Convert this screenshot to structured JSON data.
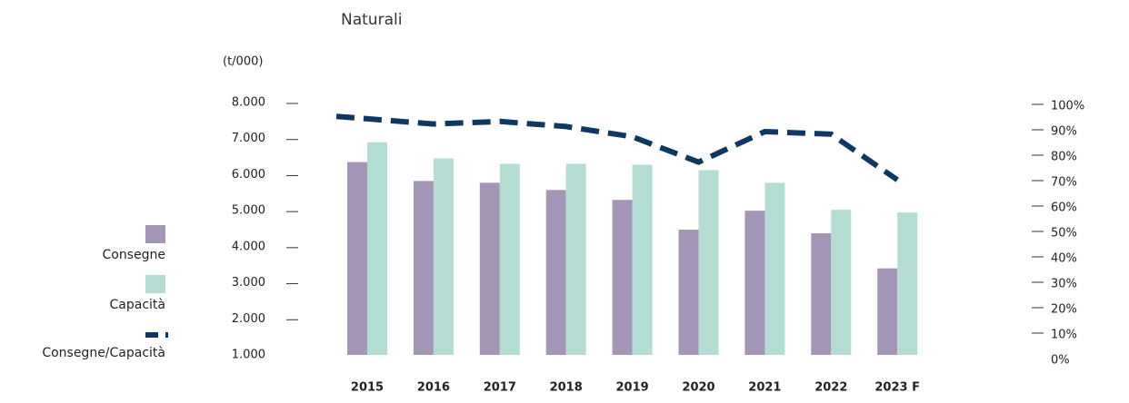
{
  "chart_data": {
    "type": "bar",
    "title": "Naturali",
    "y_label": "(t/000)",
    "categories": [
      "2015",
      "2016",
      "2017",
      "2018",
      "2019",
      "2020",
      "2021",
      "2022",
      "2023 F"
    ],
    "series": [
      {
        "name": "Consegne",
        "color": "#a396b6",
        "values": [
          6350,
          5825,
          5775,
          5575,
          5300,
          4475,
          5000,
          4375,
          3400
        ]
      },
      {
        "name": "Capacità",
        "color": "#b3ddd2",
        "values": [
          6900,
          6450,
          6300,
          6300,
          6275,
          6125,
          5775,
          5025,
          4950
        ]
      },
      {
        "name": "Consegne/Capacità",
        "type": "line",
        "axis": "y2",
        "color": "#0f3860",
        "dashed": true,
        "values": [
          96,
          93,
          94,
          92,
          88,
          78,
          90,
          89,
          71
        ]
      }
    ],
    "ylim": [
      1000,
      8000
    ],
    "yticks": [
      {
        "value": 1000,
        "label": "1.000"
      },
      {
        "value": 2000,
        "label": "2.000"
      },
      {
        "value": 3000,
        "label": "3.000"
      },
      {
        "value": 4000,
        "label": "4.000"
      },
      {
        "value": 5000,
        "label": "5.000"
      },
      {
        "value": 6000,
        "label": "6.000"
      },
      {
        "value": 7000,
        "label": "7.000"
      },
      {
        "value": 8000,
        "label": "8.000"
      }
    ],
    "y2lim": [
      0,
      100
    ],
    "y2ticks": [
      {
        "value": 0,
        "label": "0%"
      },
      {
        "value": 10,
        "label": "10%"
      },
      {
        "value": 20,
        "label": "20%"
      },
      {
        "value": 30,
        "label": "30%"
      },
      {
        "value": 40,
        "label": "40%"
      },
      {
        "value": 50,
        "label": "50%"
      },
      {
        "value": 60,
        "label": "60%"
      },
      {
        "value": 70,
        "label": "70%"
      },
      {
        "value": 80,
        "label": "80%"
      },
      {
        "value": 90,
        "label": "90%"
      },
      {
        "value": 100,
        "label": "100%"
      }
    ],
    "legend": "left"
  }
}
